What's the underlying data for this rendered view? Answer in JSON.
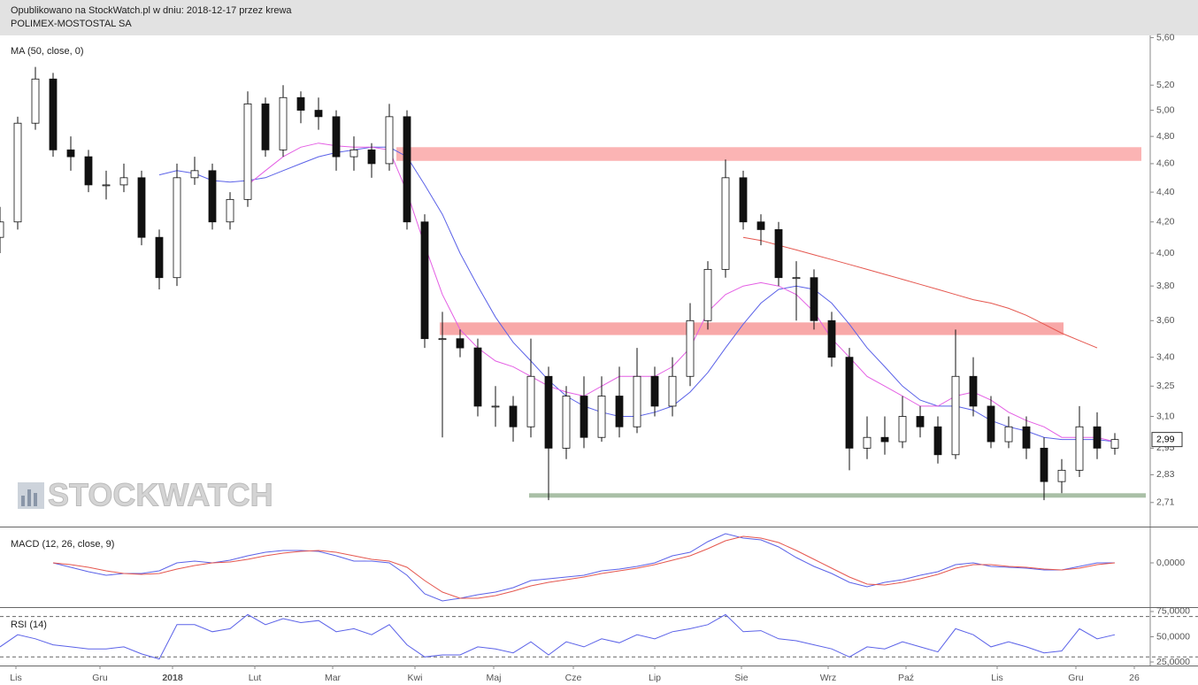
{
  "header": {
    "line1": "Opublikowano na StockWatch.pl w dniu: 2018-12-17 przez krewa",
    "line2": "POLIMEX-MOSTOSTAL SA"
  },
  "watermark": "STOCKWATCH",
  "chart_data": [
    {
      "type": "candlestick",
      "title": "MA (50, close, 0)",
      "log_scale": true,
      "xlim": [
        0,
        65
      ],
      "ylim": [
        2.61,
        5.62
      ],
      "yticks": [
        {
          "value": 5.6,
          "label": "5,60"
        },
        {
          "value": 5.2,
          "label": "5,20"
        },
        {
          "value": 5.0,
          "label": "5,00"
        },
        {
          "value": 4.8,
          "label": "4,80"
        },
        {
          "value": 4.6,
          "label": "4,60"
        },
        {
          "value": 4.4,
          "label": "4,40"
        },
        {
          "value": 4.2,
          "label": "4,20"
        },
        {
          "value": 4.0,
          "label": "4,00"
        },
        {
          "value": 3.8,
          "label": "3,80"
        },
        {
          "value": 3.6,
          "label": "3,60"
        },
        {
          "value": 3.4,
          "label": "3,40"
        },
        {
          "value": 3.25,
          "label": "3,25"
        },
        {
          "value": 3.1,
          "label": "3,10"
        },
        {
          "value": 2.95,
          "label": "2,95"
        },
        {
          "value": 2.83,
          "label": "2,83"
        },
        {
          "value": 2.71,
          "label": "2,71"
        }
      ],
      "last_price": {
        "value": 2.99,
        "label": "2,99"
      },
      "up_color": "#ffffff",
      "down_color": "#111111",
      "open": [
        4.1,
        4.2,
        4.9,
        5.25,
        4.7,
        4.65,
        4.45,
        4.45,
        4.5,
        4.1,
        3.85,
        4.5,
        4.55,
        4.2,
        4.35,
        5.05,
        4.7,
        5.1,
        5.0,
        4.95,
        4.65,
        4.7,
        4.6,
        4.95,
        4.2,
        3.5,
        3.5,
        3.45,
        3.15,
        3.15,
        3.05,
        3.3,
        2.95,
        3.2,
        3.0,
        3.2,
        3.05,
        3.3,
        3.15,
        3.3,
        3.6,
        3.9,
        4.5,
        4.2,
        4.15,
        3.85,
        3.85,
        3.6,
        3.4,
        2.95,
        3.0,
        2.98,
        3.1,
        3.05,
        2.92,
        3.3,
        3.15,
        2.98,
        3.05,
        2.95,
        2.8,
        2.85,
        3.05,
        2.95
      ],
      "high": [
        4.3,
        4.95,
        5.35,
        5.3,
        4.8,
        4.7,
        4.55,
        4.6,
        4.55,
        4.15,
        4.6,
        4.65,
        4.6,
        4.4,
        5.15,
        5.1,
        5.2,
        5.15,
        5.1,
        5.0,
        4.8,
        4.75,
        5.05,
        5.0,
        4.25,
        3.65,
        3.55,
        3.5,
        3.25,
        3.2,
        3.5,
        3.35,
        3.25,
        3.3,
        3.3,
        3.35,
        3.45,
        3.35,
        3.4,
        3.7,
        3.95,
        4.63,
        4.55,
        4.25,
        4.2,
        3.95,
        3.9,
        3.65,
        3.45,
        3.1,
        3.1,
        3.2,
        3.15,
        3.1,
        3.55,
        3.4,
        3.2,
        3.1,
        3.1,
        3.0,
        2.9,
        3.15,
        3.12,
        3.02
      ],
      "low": [
        4.0,
        4.15,
        4.85,
        4.65,
        4.55,
        4.4,
        4.35,
        4.4,
        4.05,
        3.78,
        3.8,
        4.45,
        4.15,
        4.15,
        4.3,
        4.65,
        4.65,
        4.9,
        4.85,
        4.55,
        4.55,
        4.5,
        4.55,
        4.15,
        3.45,
        3.0,
        3.4,
        3.1,
        3.05,
        2.98,
        3.0,
        2.72,
        2.9,
        2.95,
        2.98,
        3.0,
        3.02,
        3.1,
        3.1,
        3.25,
        3.55,
        3.85,
        4.15,
        4.05,
        3.8,
        3.6,
        3.55,
        3.35,
        2.85,
        2.9,
        2.92,
        2.95,
        3.0,
        2.88,
        2.9,
        3.1,
        2.95,
        2.95,
        2.9,
        2.72,
        2.75,
        2.82,
        2.9,
        2.92
      ],
      "close": [
        4.2,
        4.9,
        5.25,
        4.7,
        4.65,
        4.45,
        4.45,
        4.5,
        4.1,
        3.85,
        4.5,
        4.55,
        4.2,
        4.35,
        5.05,
        4.7,
        5.1,
        5.0,
        4.95,
        4.65,
        4.7,
        4.6,
        4.95,
        4.2,
        3.5,
        3.5,
        3.45,
        3.15,
        3.15,
        3.05,
        3.3,
        2.95,
        3.2,
        3.0,
        3.2,
        3.05,
        3.3,
        3.15,
        3.3,
        3.6,
        3.9,
        4.5,
        4.2,
        4.15,
        3.85,
        3.85,
        3.6,
        3.4,
        2.95,
        3.0,
        2.98,
        3.1,
        3.05,
        2.92,
        3.3,
        3.15,
        2.98,
        3.05,
        2.95,
        2.8,
        2.85,
        3.05,
        2.95,
        2.99
      ],
      "series": [
        {
          "color": "#5b62e8",
          "values": [
            null,
            null,
            null,
            null,
            null,
            null,
            null,
            null,
            null,
            4.52,
            4.55,
            4.53,
            4.48,
            4.47,
            4.48,
            4.5,
            4.55,
            4.6,
            4.65,
            4.68,
            4.7,
            4.72,
            4.72,
            4.65,
            4.45,
            4.25,
            4.0,
            3.8,
            3.62,
            3.48,
            3.38,
            3.28,
            3.2,
            3.15,
            3.12,
            3.1,
            3.1,
            3.12,
            3.15,
            3.22,
            3.32,
            3.45,
            3.58,
            3.7,
            3.78,
            3.8,
            3.78,
            3.7,
            3.58,
            3.45,
            3.35,
            3.25,
            3.18,
            3.15,
            3.15,
            3.13,
            3.08,
            3.05,
            3.03,
            3.0,
            2.99,
            2.99,
            2.99,
            2.98
          ]
        },
        {
          "color": "#e45fe4",
          "values": [
            null,
            null,
            null,
            null,
            null,
            null,
            null,
            null,
            null,
            null,
            null,
            null,
            null,
            null,
            4.45,
            4.55,
            4.65,
            4.72,
            4.75,
            4.73,
            4.72,
            4.72,
            4.7,
            4.4,
            4.05,
            3.75,
            3.55,
            3.45,
            3.38,
            3.35,
            3.3,
            3.25,
            3.22,
            3.2,
            3.25,
            3.3,
            3.3,
            3.3,
            3.35,
            3.45,
            3.65,
            3.75,
            3.8,
            3.82,
            3.8,
            3.75,
            3.65,
            3.5,
            3.4,
            3.3,
            3.25,
            3.2,
            3.15,
            3.15,
            3.2,
            3.22,
            3.18,
            3.12,
            3.08,
            3.05,
            3.0,
            3.0,
            3.0,
            2.98
          ]
        },
        {
          "color": "#e5574f",
          "values": [
            null,
            null,
            null,
            null,
            null,
            null,
            null,
            null,
            null,
            null,
            null,
            null,
            null,
            null,
            null,
            null,
            null,
            null,
            null,
            null,
            null,
            null,
            null,
            null,
            null,
            null,
            null,
            null,
            null,
            null,
            null,
            null,
            null,
            null,
            null,
            null,
            null,
            null,
            null,
            null,
            null,
            null,
            4.1,
            4.08,
            4.05,
            4.02,
            3.99,
            3.96,
            3.93,
            3.9,
            3.87,
            3.84,
            3.81,
            3.78,
            3.75,
            3.72,
            3.7,
            3.67,
            3.63,
            3.58,
            3.53,
            3.49,
            3.45,
            null
          ]
        }
      ],
      "zones": [
        {
          "low": 4.62,
          "high": 4.72,
          "start": 22.4,
          "end": 64.5,
          "color": "#fbb4b4"
        },
        {
          "low": 3.52,
          "high": 3.59,
          "start": 24.85,
          "end": 60.1,
          "color": "#f8a8a8"
        }
      ],
      "support": {
        "value": 2.74,
        "start": 29.9,
        "end": 64.75,
        "color": "#a9bfa6"
      }
    },
    {
      "type": "line",
      "title": "MACD (12, 26, close, 9)",
      "xlim": [
        0,
        65
      ],
      "ylim": [
        -0.5,
        0.39
      ],
      "yticks": [
        {
          "value": 0,
          "label": "0,0000"
        }
      ],
      "series": [
        {
          "color": "#5b62e8",
          "values": [
            null,
            null,
            null,
            0.0,
            -0.05,
            -0.1,
            -0.14,
            -0.12,
            -0.12,
            -0.09,
            0.0,
            0.02,
            0.0,
            0.03,
            0.08,
            0.12,
            0.14,
            0.14,
            0.13,
            0.08,
            0.02,
            0.02,
            0.0,
            -0.14,
            -0.35,
            -0.43,
            -0.4,
            -0.36,
            -0.33,
            -0.28,
            -0.2,
            -0.18,
            -0.16,
            -0.14,
            -0.09,
            -0.07,
            -0.04,
            0.0,
            0.08,
            0.12,
            0.24,
            0.33,
            0.28,
            0.26,
            0.18,
            0.06,
            -0.04,
            -0.12,
            -0.22,
            -0.27,
            -0.22,
            -0.19,
            -0.14,
            -0.1,
            -0.02,
            0.0,
            -0.04,
            -0.05,
            -0.06,
            -0.08,
            -0.08,
            -0.04,
            0.0,
            0.0
          ]
        },
        {
          "color": "#e5574f",
          "values": [
            null,
            null,
            null,
            0.0,
            -0.02,
            -0.05,
            -0.09,
            -0.12,
            -0.13,
            -0.12,
            -0.07,
            -0.03,
            0.0,
            0.01,
            0.04,
            0.08,
            0.11,
            0.13,
            0.14,
            0.12,
            0.08,
            0.04,
            0.02,
            -0.05,
            -0.2,
            -0.33,
            -0.4,
            -0.4,
            -0.37,
            -0.32,
            -0.26,
            -0.22,
            -0.19,
            -0.16,
            -0.12,
            -0.09,
            -0.06,
            -0.02,
            0.03,
            0.08,
            0.16,
            0.25,
            0.3,
            0.28,
            0.23,
            0.14,
            0.04,
            -0.06,
            -0.16,
            -0.24,
            -0.25,
            -0.22,
            -0.18,
            -0.13,
            -0.06,
            -0.02,
            -0.02,
            -0.04,
            -0.05,
            -0.07,
            -0.08,
            -0.06,
            -0.02,
            0.0
          ]
        }
      ]
    },
    {
      "type": "line",
      "title": "RSI (14)",
      "xlim": [
        0,
        65
      ],
      "ylim": [
        21.5,
        77.6
      ],
      "yticks": [
        {
          "value": 75,
          "label": "75,0000"
        },
        {
          "value": 50,
          "label": "50,0000"
        },
        {
          "value": 25,
          "label": "25,0000"
        }
      ],
      "levels": [
        70,
        30
      ],
      "xticks": [
        {
          "value": 0.9,
          "label": "Lis"
        },
        {
          "value": 5.65,
          "label": "Gru"
        },
        {
          "value": 9.75,
          "label": "2018"
        },
        {
          "value": 14.4,
          "label": "Lut"
        },
        {
          "value": 18.8,
          "label": "Mar"
        },
        {
          "value": 23.45,
          "label": "Kwi"
        },
        {
          "value": 27.9,
          "label": "Maj"
        },
        {
          "value": 32.4,
          "label": "Cze"
        },
        {
          "value": 37,
          "label": "Lip"
        },
        {
          "value": 41.9,
          "label": "Sie"
        },
        {
          "value": 46.8,
          "label": "Wrz"
        },
        {
          "value": 51.2,
          "label": "Paź"
        },
        {
          "value": 56.35,
          "label": "Lis"
        },
        {
          "value": 60.8,
          "label": "Gru"
        },
        {
          "value": 64.1,
          "label": "26"
        }
      ],
      "series": [
        {
          "color": "#5b62e8",
          "values": [
            40,
            52,
            48,
            42,
            40,
            38,
            38,
            40,
            33,
            28,
            62,
            62,
            55,
            58,
            72,
            62,
            68,
            64,
            66,
            55,
            58,
            52,
            62,
            42,
            30,
            32,
            32,
            40,
            38,
            34,
            45,
            32,
            45,
            40,
            48,
            44,
            52,
            48,
            55,
            58,
            62,
            72,
            55,
            56,
            48,
            46,
            42,
            38,
            30,
            40,
            38,
            45,
            40,
            35,
            58,
            52,
            40,
            45,
            40,
            34,
            36,
            58,
            48,
            52
          ]
        }
      ]
    }
  ]
}
